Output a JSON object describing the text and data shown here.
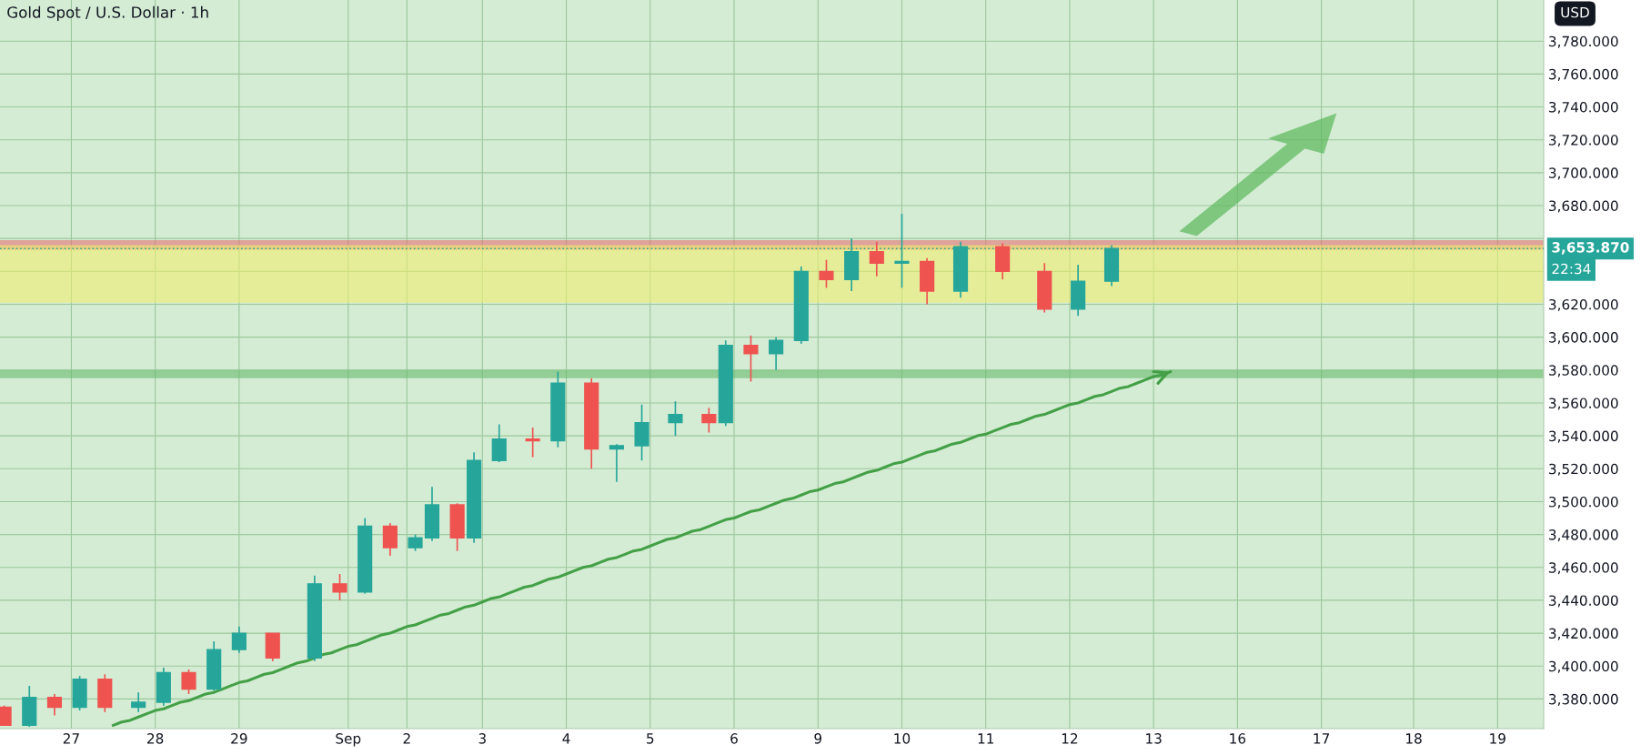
{
  "chart_data": {
    "type": "candlestick",
    "title": "Gold Spot / U.S. Dollar · 1h",
    "ylabel": "USD",
    "ylim": [
      3362,
      3805
    ],
    "categories": [
      null,
      null,
      null,
      null,
      null,
      null,
      null,
      null,
      "27",
      null,
      null,
      null,
      null,
      null,
      null,
      null,
      null,
      null,
      "28",
      null,
      null,
      null,
      null,
      null,
      null,
      null,
      null,
      null,
      "29",
      null,
      null,
      null,
      null,
      null,
      null,
      null,
      null,
      null,
      null,
      null,
      null,
      "Sep",
      null,
      null,
      null,
      null,
      null,
      null,
      "2",
      null,
      null,
      null,
      null,
      null,
      null,
      null,
      null,
      "3",
      null,
      null,
      null,
      null,
      null,
      null,
      null,
      null,
      null,
      "4",
      null,
      null,
      null,
      null,
      null,
      null,
      null,
      null,
      null,
      "5",
      null,
      null,
      null,
      null,
      null,
      null,
      null,
      null,
      null,
      "6",
      null,
      null,
      null,
      null,
      null,
      null,
      null,
      null,
      null,
      "9",
      null,
      null,
      null,
      null,
      null,
      null,
      null,
      null,
      null,
      "10",
      null,
      null,
      null,
      null,
      null,
      null,
      null,
      null,
      null,
      "11",
      null,
      null,
      null,
      null,
      null,
      null,
      null,
      null,
      null,
      "12",
      null,
      null,
      null,
      null,
      null,
      null,
      null,
      null,
      null,
      "13",
      null,
      null,
      null,
      null,
      null,
      null,
      null,
      null,
      null,
      "16",
      null,
      null,
      null,
      null,
      null,
      null,
      null,
      null,
      null,
      "17",
      null,
      null,
      null,
      null,
      null,
      null,
      null,
      null,
      null,
      null,
      "18",
      null,
      null,
      null,
      null,
      null,
      null,
      null,
      null,
      null,
      "19",
      null,
      null,
      null,
      null,
      null
    ],
    "yticks": [
      {
        "value": 3380,
        "label": "3,380.000"
      },
      {
        "value": 3400,
        "label": "3,400.000"
      },
      {
        "value": 3420,
        "label": "3,420.000"
      },
      {
        "value": 3440,
        "label": "3,440.000"
      },
      {
        "value": 3460,
        "label": "3,460.000"
      },
      {
        "value": 3480,
        "label": "3,480.000"
      },
      {
        "value": 3500,
        "label": "3,500.000"
      },
      {
        "value": 3520,
        "label": "3,520.000"
      },
      {
        "value": 3540,
        "label": "3,540.000"
      },
      {
        "value": 3560,
        "label": "3,560.000"
      },
      {
        "value": 3580,
        "label": "3,580.000"
      },
      {
        "value": 3600,
        "label": "3,600.000"
      },
      {
        "value": 3620,
        "label": "3,620.000"
      },
      {
        "value": 3640,
        "label": null
      },
      {
        "value": 3660,
        "label": null
      },
      {
        "value": 3680,
        "label": "3,680.000"
      },
      {
        "value": 3700,
        "label": "3,700.000"
      },
      {
        "value": 3720,
        "label": "3,720.000"
      },
      {
        "value": 3740,
        "label": "3,740.000"
      },
      {
        "value": 3760,
        "label": "3,760.000"
      },
      {
        "value": 3780,
        "label": "3,780.000"
      }
    ],
    "grid": true,
    "series": [
      {
        "ohlc": [
          [
            3375,
            3376,
            3364,
            3364
          ],
          null,
          null,
          [
            3364,
            3388,
            3363,
            3381
          ],
          null,
          null,
          [
            3381,
            3383,
            3370,
            3375
          ],
          null,
          null,
          [
            3375,
            3394,
            3373,
            3392
          ],
          null,
          null,
          [
            3392,
            3395,
            3372,
            3375
          ],
          null,
          null,
          null,
          [
            3375,
            3384,
            3372,
            3378
          ],
          null,
          null,
          [
            3378,
            3399,
            3376,
            3396
          ],
          null,
          null,
          [
            3396,
            3398,
            3383,
            3386
          ],
          null,
          null,
          [
            3386,
            3415,
            3385,
            3410
          ],
          null,
          null,
          [
            3410,
            3424,
            3408,
            3420
          ],
          null,
          null,
          null,
          [
            3420,
            3420,
            3403,
            3405
          ],
          null,
          null,
          null,
          null,
          [
            3405,
            3455,
            3403,
            3450
          ],
          null,
          null,
          [
            3450,
            3456,
            3440,
            3445
          ],
          null,
          null,
          [
            3445,
            3490,
            3444,
            3485
          ],
          null,
          null,
          [
            3485,
            3487,
            3467,
            3472
          ],
          null,
          null,
          [
            3472,
            3480,
            3470,
            3478
          ],
          null,
          [
            3478,
            3509,
            3476,
            3498
          ],
          null,
          null,
          [
            3498,
            3499,
            3470,
            3478
          ],
          null,
          [
            3478,
            3530,
            3475,
            3525
          ],
          null,
          null,
          [
            3525,
            3547,
            3524,
            3538
          ],
          null,
          null,
          null,
          [
            3538,
            3545,
            3527,
            3537
          ],
          null,
          null,
          [
            3537,
            3579,
            3533,
            3572
          ],
          null,
          null,
          null,
          [
            3572,
            3575,
            3520,
            3532
          ],
          null,
          null,
          [
            3532,
            3535,
            3512,
            3534
          ],
          null,
          null,
          [
            3534,
            3559,
            3525,
            3548
          ],
          null,
          null,
          null,
          [
            3548,
            3561,
            3540,
            3553
          ],
          null,
          null,
          null,
          [
            3553,
            3557,
            3542,
            3548
          ],
          null,
          [
            3548,
            3598,
            3546,
            3595
          ],
          null,
          null,
          [
            3595,
            3601,
            3573,
            3590
          ],
          null,
          null,
          [
            3590,
            3600,
            3580,
            3598
          ],
          null,
          null,
          [
            3598,
            3643,
            3596,
            3640
          ],
          null,
          null,
          [
            3640,
            3647,
            3630,
            3635
          ],
          null,
          null,
          [
            3635,
            3660,
            3628,
            3652
          ],
          null,
          null,
          [
            3652,
            3658,
            3637,
            3645
          ],
          null,
          null,
          [
            3645,
            3675,
            3630,
            3646
          ],
          null,
          null,
          [
            3646,
            3648,
            3620,
            3628
          ],
          null,
          null,
          null,
          [
            3628,
            3658,
            3624,
            3655
          ],
          null,
          null,
          null,
          null,
          [
            3655,
            3657,
            3635,
            3640
          ],
          null,
          null,
          null,
          null,
          [
            3640,
            3645,
            3615,
            3617
          ],
          null,
          null,
          null,
          [
            3617,
            3644,
            3613,
            3634
          ],
          null,
          null,
          null,
          [
            3634,
            3656,
            3631,
            3653.87
          ],
          null,
          null,
          null,
          null,
          null,
          null,
          null,
          null,
          null,
          null,
          null,
          null,
          null,
          null,
          null,
          null,
          null,
          null,
          null,
          null,
          null,
          null,
          null,
          null,
          null,
          null,
          null,
          null,
          null,
          null,
          null,
          null,
          null,
          null,
          null,
          null,
          null,
          null,
          null,
          null,
          null,
          null,
          null,
          null,
          null,
          null,
          null,
          null,
          null,
          null,
          null
        ]
      },
      {
        "type": "line",
        "color": "#43a047",
        "values": [
          null,
          null,
          null,
          null,
          null,
          null,
          null,
          null,
          null,
          null,
          null,
          null,
          null,
          3364,
          3366,
          3367,
          3369,
          3371,
          3373,
          3374,
          3376,
          3378,
          3379,
          3381,
          3383,
          3384,
          3386,
          3388,
          3390,
          3391,
          3393,
          3395,
          3396,
          3398,
          3400,
          3402,
          3403,
          3405,
          3407,
          3408,
          3410,
          3412,
          3413,
          3415,
          3417,
          3419,
          3420,
          3422,
          3424,
          3425,
          3427,
          3429,
          3431,
          3432,
          3434,
          3436,
          3437,
          3439,
          3441,
          3442,
          3444,
          3446,
          3448,
          3449,
          3451,
          3453,
          3454,
          3456,
          3458,
          3460,
          3461,
          3463,
          3465,
          3466,
          3468,
          3470,
          3471,
          3473,
          3475,
          3477,
          3478,
          3480,
          3482,
          3483,
          3485,
          3487,
          3489,
          3490,
          3492,
          3494,
          3495,
          3497,
          3499,
          3501,
          3502,
          3504,
          3506,
          3507,
          3509,
          3511,
          3512,
          3514,
          3516,
          3518,
          3519,
          3521,
          3523,
          3524,
          3526,
          3528,
          3530,
          3531,
          3533,
          3535,
          3536,
          3538,
          3540,
          3541,
          3543,
          3545,
          3547,
          3548,
          3550,
          3552,
          3553,
          3555,
          3557,
          3559,
          3560,
          3562,
          3564,
          3565,
          3567,
          3569,
          3570,
          3572,
          3574,
          3576,
          3577,
          3579,
          null,
          null,
          null,
          null,
          null,
          null,
          null,
          null,
          null,
          null,
          null,
          null,
          null,
          null,
          null,
          null,
          null,
          null,
          null,
          null,
          null,
          null,
          null,
          null,
          null,
          null,
          null,
          null,
          null,
          null,
          null,
          null,
          null,
          null,
          null,
          null,
          null,
          null,
          null,
          null,
          null,
          null,
          null,
          null
        ]
      }
    ],
    "bands": [
      {
        "axis": "y",
        "from": 3653,
        "to": 3659,
        "color": "#e57373"
      },
      {
        "axis": "y",
        "from": 3621,
        "to": 3656,
        "color": "#f0ee70"
      },
      {
        "axis": "y",
        "from": 3575,
        "to": 3580,
        "color": "#66bb6a"
      }
    ],
    "ref_lines": [
      {
        "axis": "y",
        "value": 3653.87,
        "label": "3,653.870",
        "color": "#26a69a",
        "line_style": "dotted"
      }
    ],
    "annotations": [
      "22:34"
    ]
  }
}
